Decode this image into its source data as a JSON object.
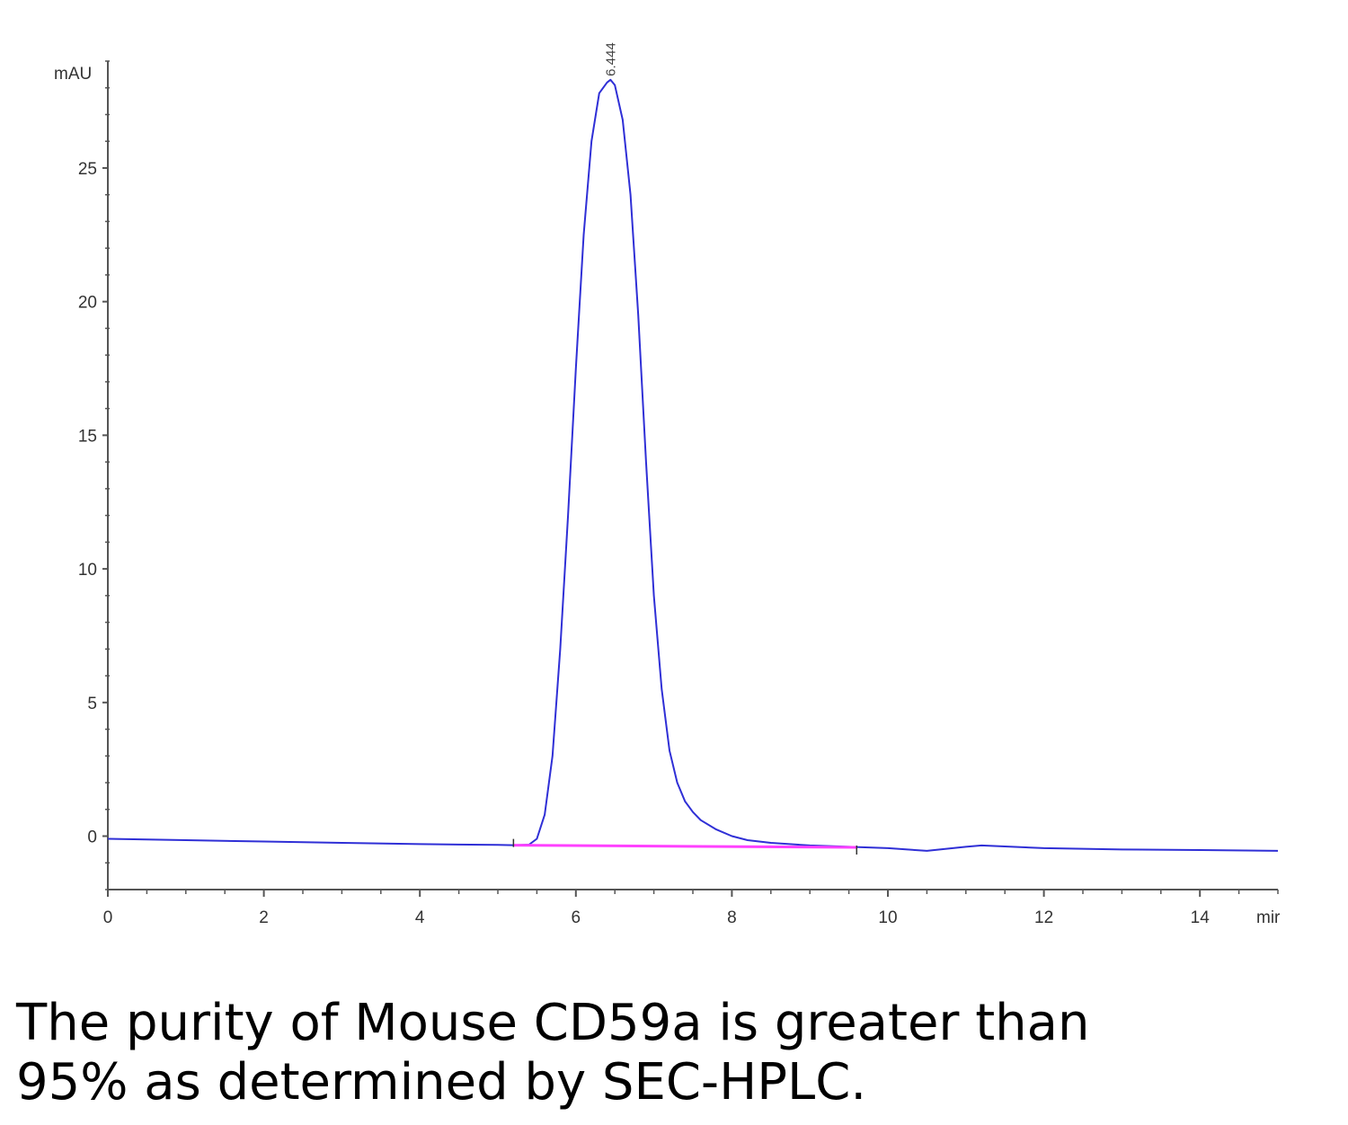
{
  "chart_data": {
    "type": "line",
    "ylabel": "mAU",
    "xlabel": "mir",
    "xlim": [
      0,
      15
    ],
    "ylim": [
      -2,
      29
    ],
    "x_ticks": [
      "0",
      "2",
      "4",
      "6",
      "8",
      "10",
      "12",
      "14"
    ],
    "x_tick_values": [
      0,
      2,
      4,
      6,
      8,
      10,
      12,
      14
    ],
    "y_ticks": [
      "0",
      "5",
      "10",
      "15",
      "20",
      "25"
    ],
    "y_tick_values": [
      0,
      5,
      10,
      15,
      20,
      25
    ],
    "grid": false,
    "legend": "none",
    "peak_label": "6.444",
    "peak_x": 6.444,
    "series": [
      {
        "color": "#2f2fd6",
        "x": [
          0,
          1,
          2,
          3,
          4,
          5,
          5.2,
          5.4,
          5.5,
          5.6,
          5.7,
          5.8,
          5.9,
          6.0,
          6.1,
          6.2,
          6.3,
          6.4,
          6.444,
          6.5,
          6.6,
          6.7,
          6.8,
          6.9,
          7.0,
          7.1,
          7.2,
          7.3,
          7.4,
          7.5,
          7.6,
          7.8,
          8.0,
          8.2,
          8.5,
          9.0,
          9.5,
          10.0,
          10.5,
          11.0,
          11.2,
          12.0,
          13.0,
          14.0,
          15.0
        ],
        "y": [
          -0.1,
          -0.15,
          -0.2,
          -0.25,
          -0.3,
          -0.33,
          -0.34,
          -0.32,
          -0.1,
          0.8,
          3.0,
          7.0,
          12.0,
          17.5,
          22.5,
          26.0,
          27.8,
          28.2,
          28.3,
          28.1,
          26.8,
          24.0,
          19.5,
          14.0,
          9.0,
          5.5,
          3.2,
          2.0,
          1.3,
          0.9,
          0.6,
          0.25,
          0.0,
          -0.15,
          -0.25,
          -0.35,
          -0.4,
          -0.45,
          -0.55,
          -0.4,
          -0.35,
          -0.45,
          -0.5,
          -0.52,
          -0.55
        ]
      }
    ],
    "baseline": {
      "color": "#ff40ff",
      "x": [
        5.2,
        9.6
      ],
      "y": [
        -0.34,
        -0.42
      ]
    }
  },
  "caption": {
    "line1": "The purity of Mouse CD59a is greater than",
    "line2": "95% as determined by SEC-HPLC."
  }
}
